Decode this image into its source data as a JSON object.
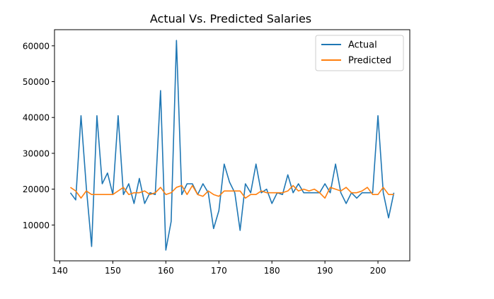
{
  "chart_data": {
    "type": "line",
    "title": "Actual Vs. Predicted Salaries",
    "xlabel": "",
    "ylabel": "",
    "xlim": [
      139,
      206
    ],
    "ylim": [
      0,
      64500
    ],
    "xticks": [
      140,
      150,
      160,
      170,
      180,
      190,
      200
    ],
    "yticks": [
      10000,
      20000,
      30000,
      40000,
      50000,
      60000
    ],
    "x_tick_labels": [
      "140",
      "150",
      "160",
      "170",
      "180",
      "190",
      "200"
    ],
    "y_tick_labels": [
      "10000",
      "20000",
      "30000",
      "40000",
      "50000",
      "60000"
    ],
    "grid": false,
    "legend_position": "top-right",
    "x": [
      142,
      143,
      144,
      145,
      146,
      147,
      148,
      149,
      150,
      151,
      152,
      153,
      154,
      155,
      156,
      157,
      158,
      159,
      160,
      161,
      162,
      163,
      164,
      165,
      166,
      167,
      168,
      169,
      170,
      171,
      172,
      173,
      174,
      175,
      176,
      177,
      178,
      179,
      180,
      181,
      182,
      183,
      184,
      185,
      186,
      187,
      188,
      189,
      190,
      191,
      192,
      193,
      194,
      195,
      196,
      197,
      198,
      199,
      200,
      201,
      202,
      203
    ],
    "series": [
      {
        "name": "Actual",
        "color": "#1f77b4",
        "values": [
          19000,
          17000,
          40500,
          20500,
          4000,
          40500,
          21500,
          24500,
          18500,
          40500,
          18500,
          21500,
          16000,
          23000,
          16000,
          19000,
          18500,
          47500,
          3000,
          11000,
          61500,
          18500,
          21500,
          21500,
          18500,
          21500,
          19000,
          9000,
          14000,
          27000,
          22000,
          19000,
          8500,
          21500,
          19000,
          27000,
          19000,
          20000,
          16000,
          19000,
          18500,
          24000,
          19000,
          21500,
          19000,
          19000,
          19000,
          19000,
          21500,
          19000,
          27000,
          19000,
          16000,
          19000,
          17500,
          19000,
          19000,
          19000,
          40500,
          19000,
          12000,
          19000
        ]
      },
      {
        "name": "Predicted",
        "color": "#ff7f0e",
        "values": [
          20500,
          19500,
          17500,
          19500,
          18500,
          18500,
          18500,
          18500,
          18500,
          19500,
          20500,
          18500,
          19000,
          19000,
          19500,
          18500,
          19000,
          20500,
          18500,
          19000,
          20500,
          21000,
          18500,
          21000,
          18500,
          18000,
          19500,
          18500,
          18000,
          19500,
          19500,
          19500,
          19500,
          17500,
          18500,
          18500,
          19500,
          19000,
          19000,
          19000,
          19000,
          19500,
          21000,
          19500,
          20000,
          19500,
          20000,
          19000,
          17500,
          20500,
          20000,
          19500,
          20500,
          19000,
          19000,
          19500,
          20500,
          18500,
          18500,
          20500,
          18500,
          18500
        ]
      }
    ]
  }
}
